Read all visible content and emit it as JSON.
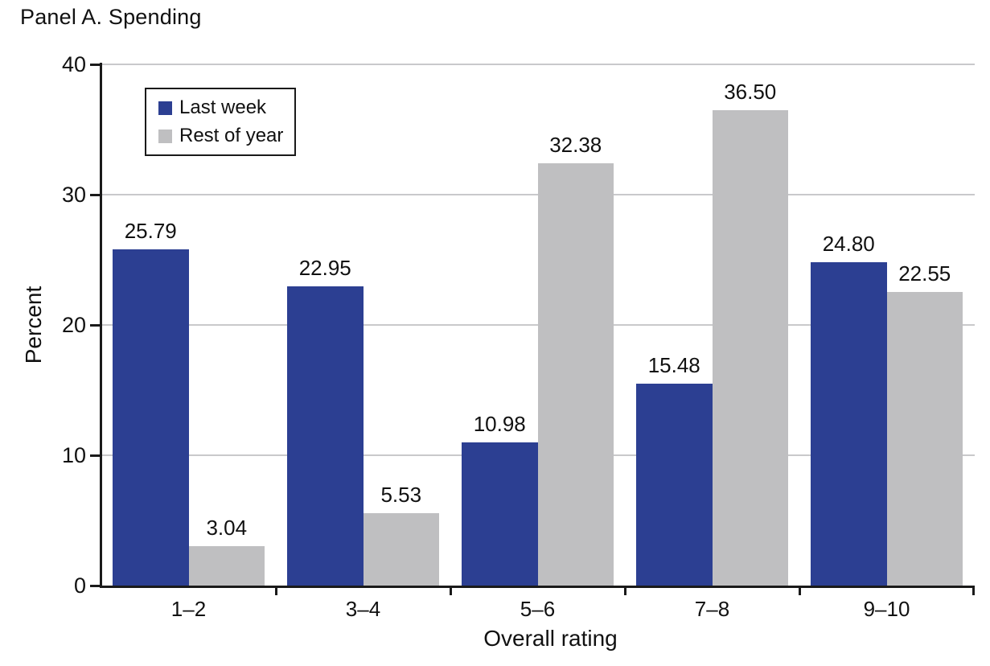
{
  "title": "Panel A. Spending",
  "colors": {
    "last_week": "#2c3f92",
    "rest_of_year": "#bfbfc1",
    "gridline": "#c9c9cb",
    "axis": "#1a1a1a"
  },
  "chart_data": {
    "type": "bar",
    "title": "Panel A. Spending",
    "categories": [
      "1–2",
      "3–4",
      "5–6",
      "7–8",
      "9–10"
    ],
    "series": [
      {
        "name": "Last week",
        "color_key": "last_week",
        "values": [
          25.79,
          22.95,
          10.98,
          15.48,
          24.8
        ]
      },
      {
        "name": "Rest of year",
        "color_key": "rest_of_year",
        "values": [
          3.04,
          5.53,
          32.38,
          36.5,
          22.55
        ]
      }
    ],
    "xlabel": "Overall rating",
    "ylabel": "Percent",
    "ylim": [
      0,
      40
    ],
    "yticks": [
      0,
      10,
      20,
      30,
      40
    ],
    "grid": true,
    "value_labels": true,
    "value_label_decimals": 2,
    "legend_position": "top-left"
  }
}
